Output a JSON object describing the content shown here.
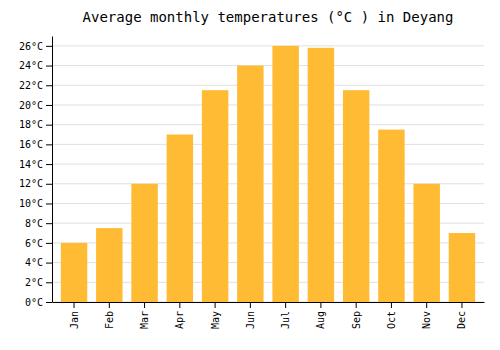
{
  "chart_data": {
    "type": "bar",
    "title": "Average monthly temperatures (°C ) in Deyang",
    "categories": [
      "Jan",
      "Feb",
      "Mar",
      "Apr",
      "May",
      "Jun",
      "Jul",
      "Aug",
      "Sep",
      "Oct",
      "Nov",
      "Dec"
    ],
    "values": [
      6,
      7.5,
      12,
      17,
      21.5,
      24,
      26,
      25.8,
      21.5,
      17.5,
      12,
      7
    ],
    "color": "#FFBB33",
    "ylim": [
      0,
      27
    ],
    "yticks": [
      {
        "value": 0,
        "label": "0°C"
      },
      {
        "value": 2,
        "label": "2°C"
      },
      {
        "value": 4,
        "label": "4°C"
      },
      {
        "value": 6,
        "label": "6°C"
      },
      {
        "value": 8,
        "label": "8°C"
      },
      {
        "value": 10,
        "label": "10°C"
      },
      {
        "value": 12,
        "label": "12°C"
      },
      {
        "value": 14,
        "label": "14°C"
      },
      {
        "value": 16,
        "label": "16°C"
      },
      {
        "value": 18,
        "label": "18°C"
      },
      {
        "value": 20,
        "label": "20°C"
      },
      {
        "value": 22,
        "label": "22°C"
      },
      {
        "value": 24,
        "label": "24°C"
      },
      {
        "value": 26,
        "label": "26°C"
      }
    ],
    "grid": true
  }
}
